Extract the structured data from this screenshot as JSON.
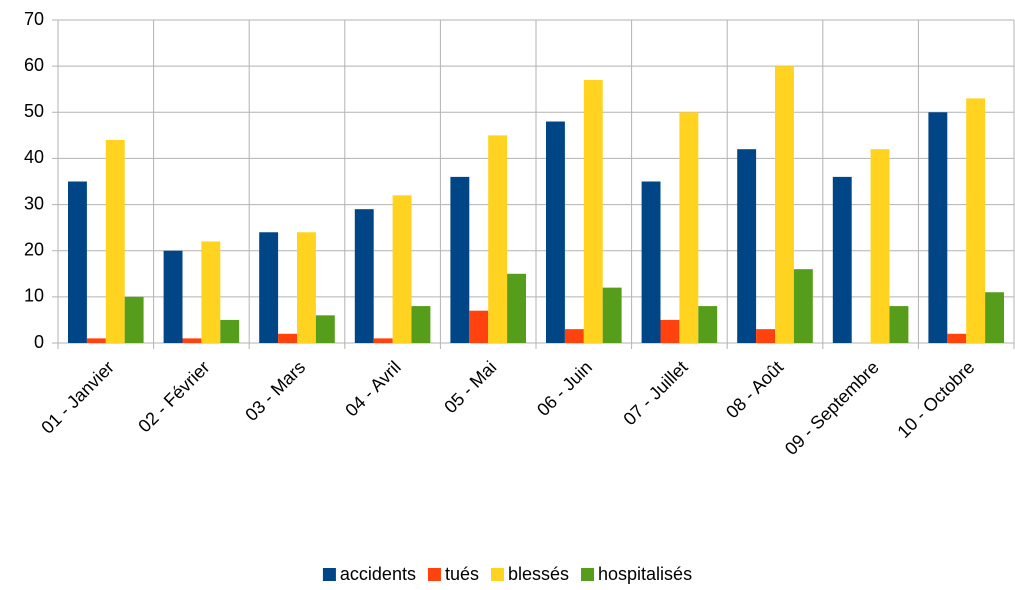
{
  "chart_data": {
    "type": "bar",
    "categories": [
      "01 - Janvier",
      "02 - Février",
      "03 - Mars",
      "04 - Avril",
      "05 - Mai",
      "06 - Juin",
      "07 - Juillet",
      "08 - Août",
      "09 - Septembre",
      "10 - Octobre"
    ],
    "series": [
      {
        "name": "accidents",
        "color": "#004586",
        "values": [
          35,
          20,
          24,
          29,
          36,
          48,
          35,
          42,
          36,
          50
        ]
      },
      {
        "name": "tués",
        "color": "#ff420e",
        "values": [
          1,
          1,
          2,
          1,
          7,
          3,
          5,
          3,
          0,
          2
        ]
      },
      {
        "name": "blessés",
        "color": "#ffd320",
        "values": [
          44,
          22,
          24,
          32,
          45,
          57,
          50,
          60,
          42,
          53
        ]
      },
      {
        "name": "hospitalisés",
        "color": "#579d1c",
        "values": [
          10,
          5,
          6,
          8,
          15,
          12,
          8,
          16,
          8,
          11
        ]
      }
    ],
    "ylim": [
      0,
      70
    ],
    "yticks": [
      0,
      10,
      20,
      30,
      40,
      50,
      60,
      70
    ],
    "grid": true,
    "legend": "bottom"
  }
}
